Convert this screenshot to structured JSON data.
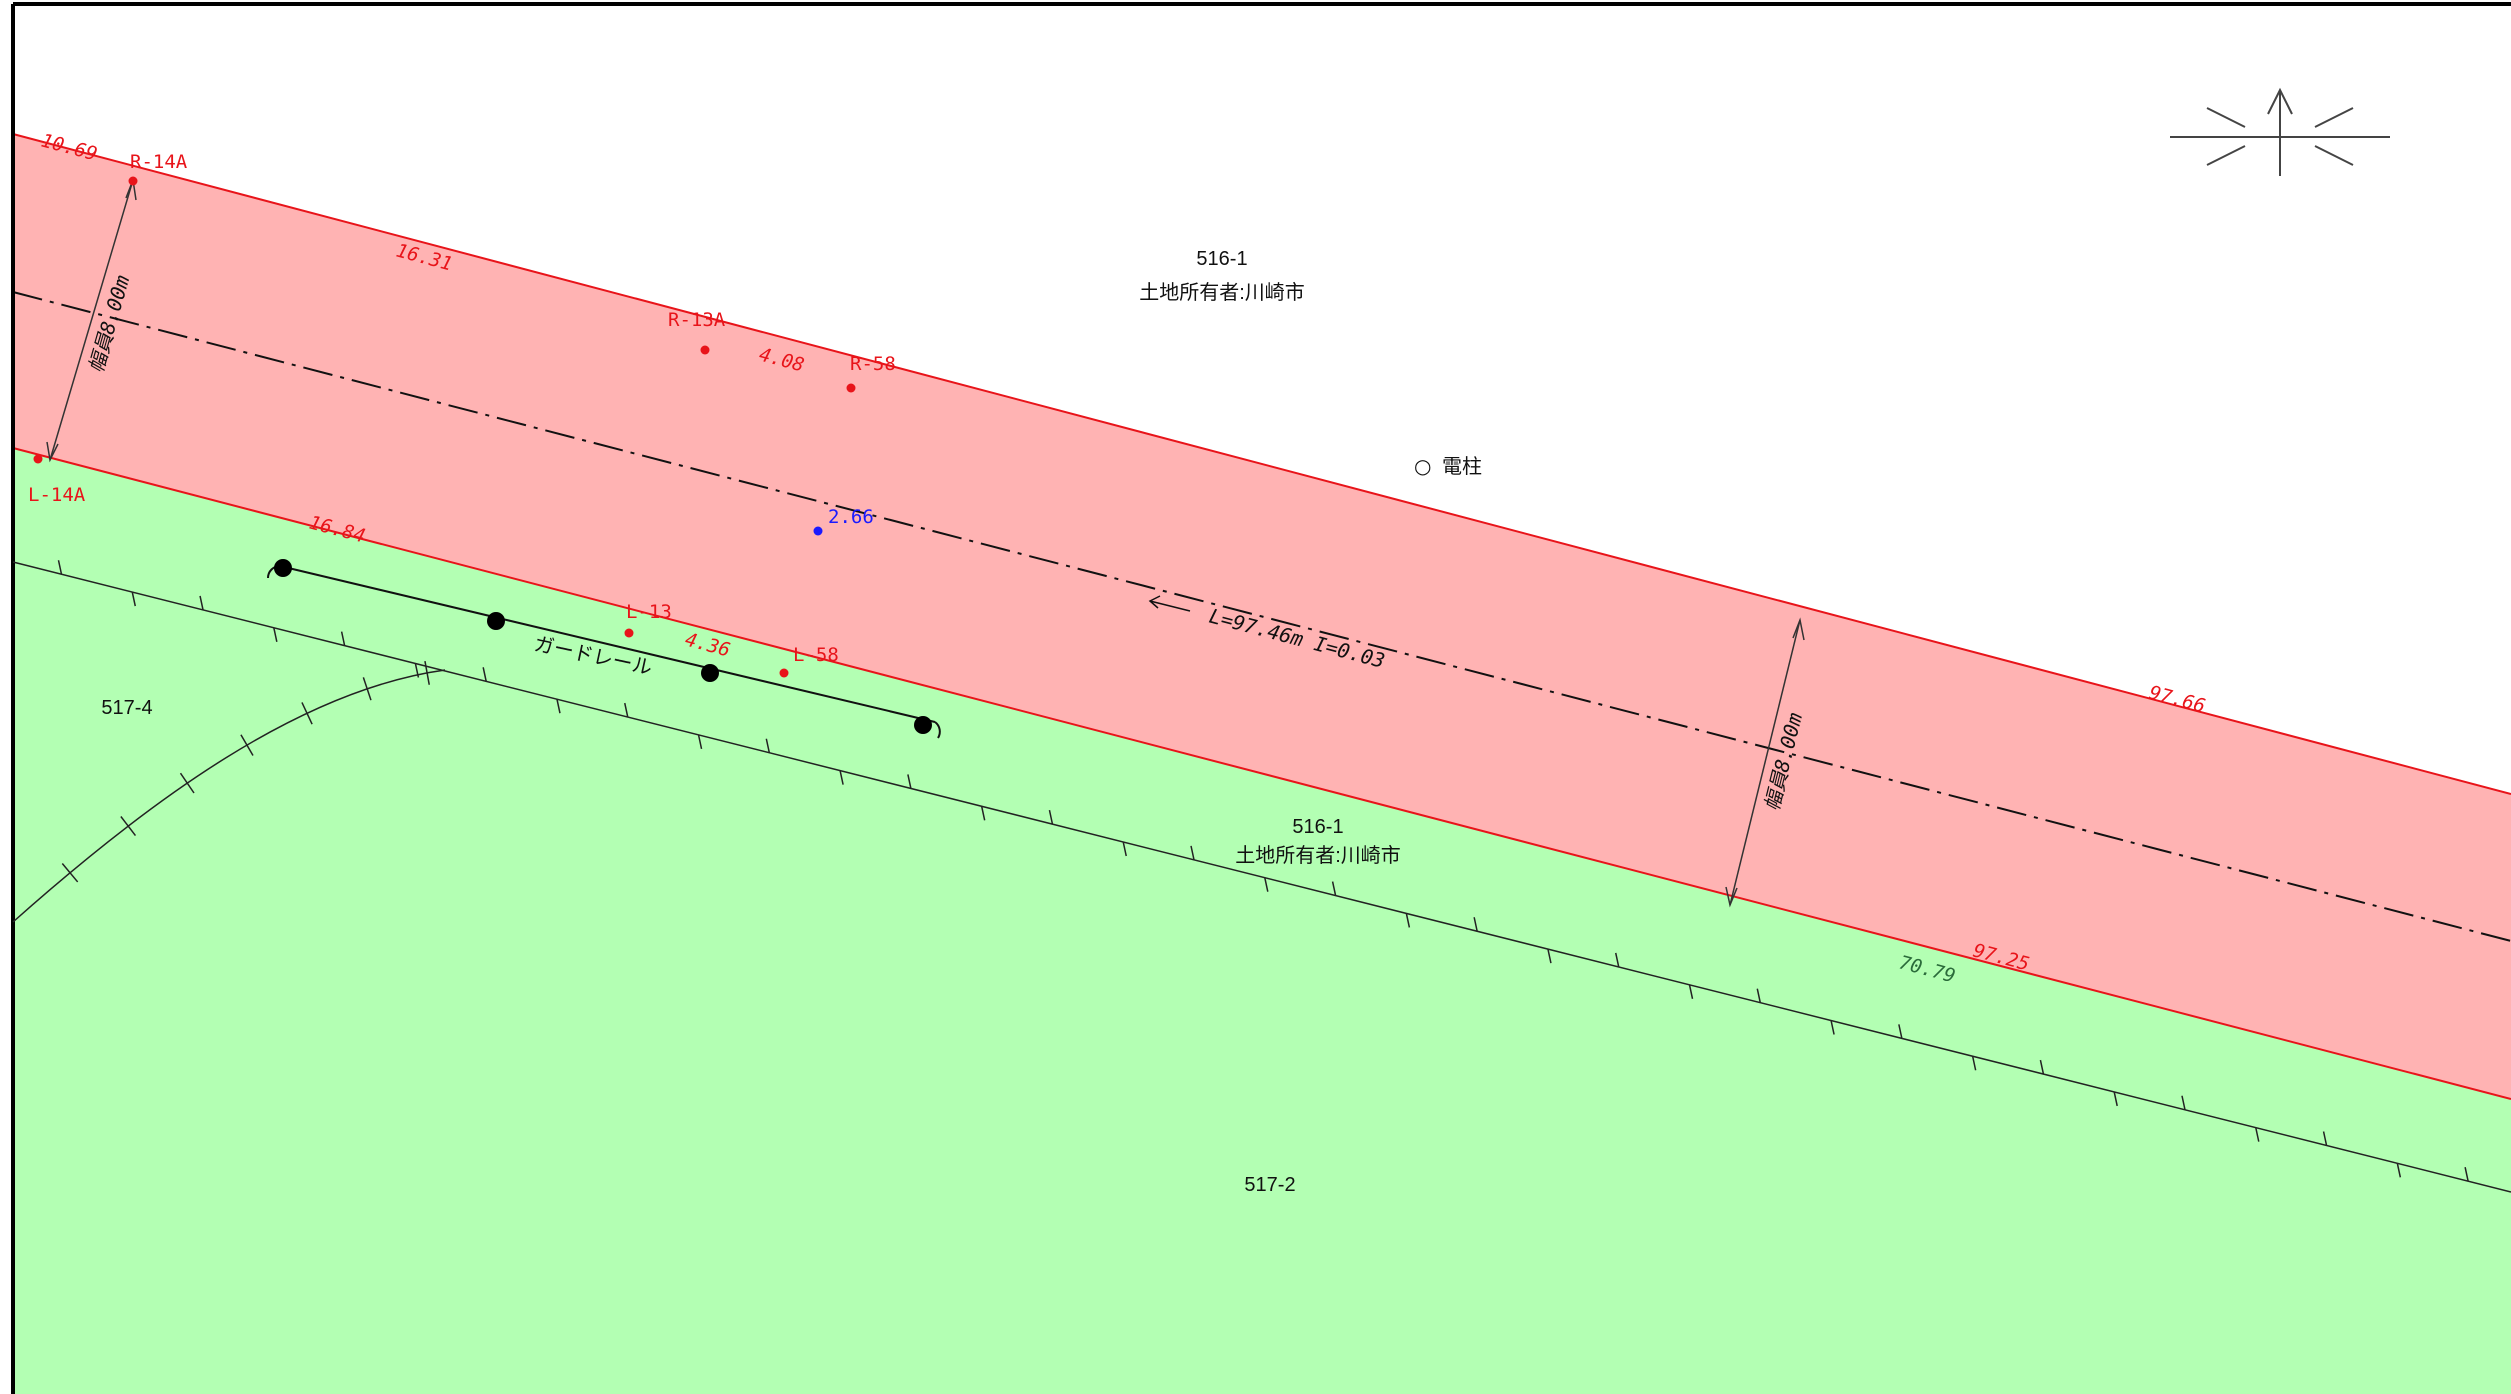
{
  "parcels": {
    "road_top_number": "516-1",
    "road_top_owner": "土地所有者:川崎市",
    "road_bottom_number": "516-1",
    "road_bottom_owner": "土地所有者:川崎市",
    "left_parcel": "517-4",
    "lower_parcel": "517-2"
  },
  "points": {
    "r14a": "R-14A",
    "r13a": "R-13A",
    "r58": "R-58",
    "l14a": "L-14A",
    "l13": "L-13",
    "l58": "L-58"
  },
  "distances": {
    "d_1069": "10.69",
    "d_1631": "16.31",
    "d_408": "4.08",
    "d_1684": "16.84",
    "d_436": "4.36",
    "d_9766": "97.66",
    "d_9725": "97.25",
    "d_7079": "70.79",
    "d_266": "2.66"
  },
  "annotations": {
    "width_left": "幅員8.00m",
    "width_right": "幅員8.00m",
    "centerline": "L=97.46m I=0.03",
    "guardrail": "ガードレール",
    "utility_pole": "電柱",
    "pole_symbol": "○"
  },
  "colors": {
    "road_fill": "#ffb3b3",
    "land_fill": "#b3ffb3",
    "boundary_red": "#e8141a",
    "frame": "#000000"
  }
}
